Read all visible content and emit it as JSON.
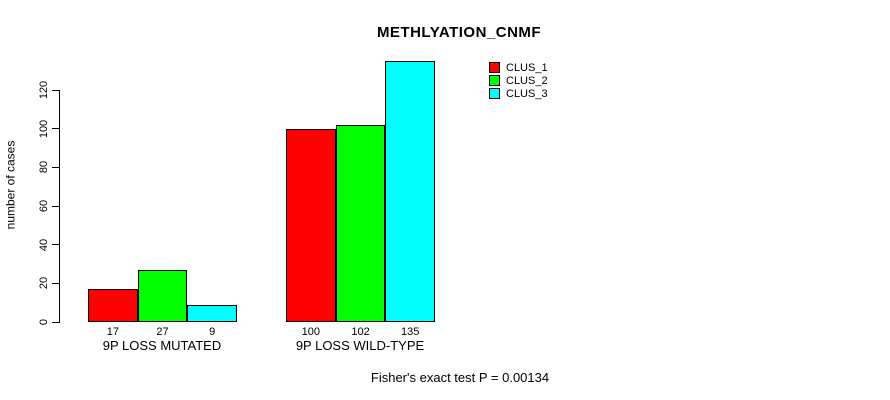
{
  "chart_data": {
    "type": "bar",
    "title": "METHLYATION_CNMF",
    "xlabel": "",
    "ylabel": "number of cases",
    "ylim": [
      0,
      135
    ],
    "yticks": [
      0,
      20,
      40,
      60,
      80,
      100,
      120
    ],
    "grid": false,
    "legend_position": "top-right",
    "categories": [
      "9P LOSS MUTATED",
      "9P LOSS WILD-TYPE"
    ],
    "groups": [
      {
        "label": "9P LOSS MUTATED",
        "values": [
          17,
          27,
          9
        ]
      },
      {
        "label": "9P LOSS WILD-TYPE",
        "values": [
          100,
          102,
          135
        ]
      }
    ],
    "series": [
      {
        "name": "CLUS_1",
        "color": "#FF0000",
        "values": [
          17,
          100
        ]
      },
      {
        "name": "CLUS_2",
        "color": "#00FF00",
        "values": [
          27,
          102
        ]
      },
      {
        "name": "CLUS_3",
        "color": "#00FFFF",
        "values": [
          9,
          135
        ]
      }
    ],
    "bar_value_labels": [
      [
        17,
        27,
        9
      ],
      [
        100,
        102,
        135
      ]
    ],
    "annotation": "Fisher's exact test P = 0.00134"
  }
}
